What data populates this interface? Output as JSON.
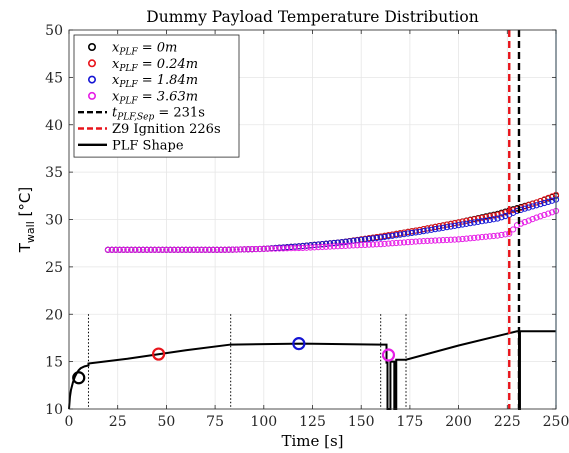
{
  "chart_data": {
    "type": "line",
    "title": "Dummy Payload Temperature Distribution",
    "xlabel": "Time [s]",
    "ylabel": {
      "main": "T",
      "sub": "wall",
      "unit": " [°C]"
    },
    "xlim": [
      0,
      250
    ],
    "ylim": [
      10,
      50
    ],
    "xticks": [
      0,
      25,
      50,
      75,
      100,
      125,
      150,
      175,
      200,
      225,
      250
    ],
    "yticks": [
      10,
      15,
      20,
      25,
      30,
      35,
      40,
      45,
      50
    ],
    "grid": true,
    "legend_placement": "top-left",
    "legend": [
      {
        "key": "x0",
        "kind": "marker",
        "color": "#000000",
        "pre": "x",
        "sub": "PLF",
        "post": " = 0m"
      },
      {
        "key": "x024",
        "kind": "marker",
        "color": "#e8141b",
        "pre": "x",
        "sub": "PLF",
        "post": " = 0.24m"
      },
      {
        "key": "x184",
        "kind": "marker",
        "color": "#1414d4",
        "pre": "x",
        "sub": "PLF",
        "post": " = 1.84m"
      },
      {
        "key": "x363",
        "kind": "marker",
        "color": "#e61ee6",
        "pre": "x",
        "sub": "PLF",
        "post": " = 3.63m"
      },
      {
        "key": "tsep",
        "kind": "dashed",
        "color": "#000000",
        "pre": "t",
        "sub": "PLF,Sep",
        "post": " = 231s"
      },
      {
        "key": "z9",
        "kind": "dashed",
        "color": "#e8141b",
        "pre": "Z9 Ignition 226s",
        "sub": "",
        "post": ""
      },
      {
        "key": "plf",
        "kind": "solid",
        "color": "#000000",
        "pre": "PLF Shape",
        "sub": "",
        "post": ""
      }
    ],
    "series": [
      {
        "key": "x0",
        "color": "#000000",
        "x": [
          20,
          50,
          80,
          100,
          120,
          140,
          160,
          180,
          200,
          220,
          230,
          240,
          250
        ],
        "y": [
          26.8,
          26.8,
          26.8,
          26.9,
          27.2,
          27.6,
          28.2,
          28.9,
          29.7,
          30.6,
          31.2,
          31.8,
          32.5
        ]
      },
      {
        "key": "x024",
        "color": "#e8141b",
        "x": [
          20,
          50,
          80,
          100,
          120,
          140,
          160,
          180,
          200,
          220,
          230,
          240,
          250
        ],
        "y": [
          26.8,
          26.8,
          26.8,
          26.9,
          27.2,
          27.6,
          28.2,
          28.9,
          29.7,
          30.5,
          31.1,
          31.8,
          32.6
        ]
      },
      {
        "key": "x184",
        "color": "#1414d4",
        "x": [
          20,
          50,
          80,
          100,
          120,
          140,
          160,
          180,
          200,
          220,
          226,
          230,
          240,
          250
        ],
        "y": [
          26.8,
          26.8,
          26.8,
          26.9,
          27.2,
          27.6,
          28.1,
          28.7,
          29.4,
          30.1,
          30.5,
          30.9,
          31.5,
          32.1
        ]
      },
      {
        "key": "x363",
        "color": "#e61ee6",
        "x": [
          20,
          50,
          80,
          100,
          120,
          140,
          160,
          180,
          200,
          210,
          220,
          226,
          230,
          240,
          250
        ],
        "y": [
          26.8,
          26.8,
          26.8,
          26.9,
          27.0,
          27.2,
          27.4,
          27.7,
          27.9,
          28.1,
          28.3,
          28.5,
          29.4,
          30.2,
          30.9
        ]
      }
    ],
    "vlines": [
      {
        "key": "tsep",
        "x": 231,
        "color": "#000000",
        "style": "dashed"
      },
      {
        "key": "z9",
        "x": 226,
        "color": "#e8141b",
        "style": "dashed"
      },
      {
        "key": "edge",
        "x": 250,
        "color": "#8fc8e8",
        "style": "solid"
      }
    ],
    "plf_shape": {
      "x": [
        0,
        0.5,
        1,
        2,
        3,
        4,
        5,
        6,
        8,
        10,
        10,
        30,
        60,
        83,
        83,
        120,
        160,
        163,
        163,
        163.5,
        163.5,
        165,
        165,
        167,
        167,
        168,
        168,
        168.5,
        168.5,
        173,
        173,
        200,
        230,
        231,
        231,
        231.5,
        231.5,
        250
      ],
      "y": [
        10,
        11.3,
        12.0,
        12.8,
        13.4,
        13.8,
        14.1,
        14.3,
        14.5,
        14.6,
        14.8,
        15.3,
        16.2,
        16.8,
        16.8,
        16.9,
        16.8,
        16.8,
        14.9,
        14.9,
        10,
        10,
        15.0,
        15.0,
        10,
        10,
        15.2,
        15.2,
        15.2,
        15.2,
        15.2,
        16.7,
        18.2,
        18.2,
        10,
        10,
        18.2,
        18.2
      ]
    },
    "section_lines": [
      10,
      83,
      160,
      173
    ],
    "location_markers": [
      {
        "key": "x0",
        "color": "#000000",
        "x": 5,
        "y": 13.3
      },
      {
        "key": "x024",
        "color": "#e8141b",
        "x": 46,
        "y": 15.8
      },
      {
        "key": "x184",
        "color": "#1414d4",
        "x": 118,
        "y": 16.9
      },
      {
        "key": "x363",
        "color": "#e61ee6",
        "x": 164,
        "y": 15.7
      }
    ]
  }
}
